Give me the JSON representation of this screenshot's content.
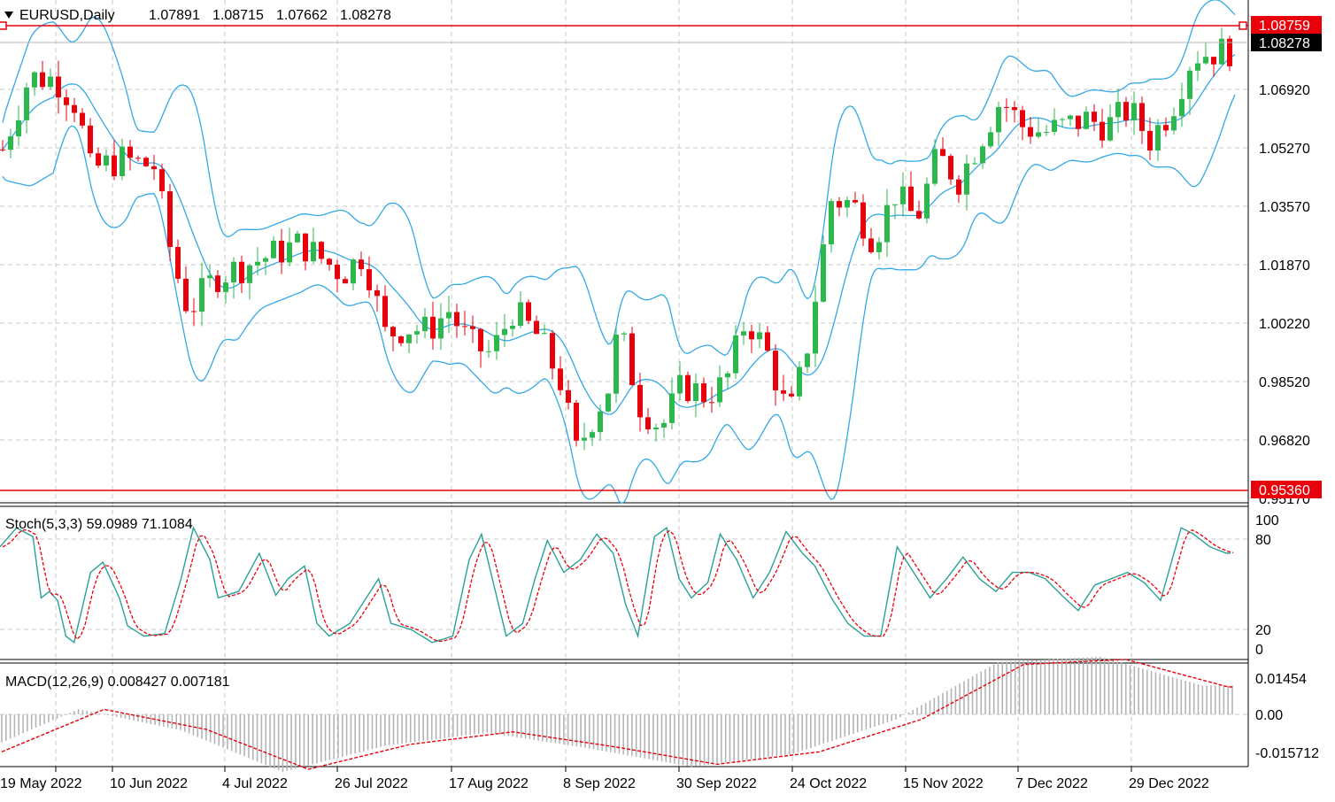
{
  "header": {
    "symbol_label": "EURUSD,Daily",
    "ohlc": [
      "1.07891",
      "1.08715",
      "1.07662",
      "1.08278"
    ]
  },
  "price_axis": {
    "ticks": [
      "1.06920",
      "1.05270",
      "1.03570",
      "1.01870",
      "1.00220",
      "0.98520",
      "0.96820"
    ],
    "partial_tick": "0.95170",
    "ylim": [
      0.9478,
      1.0975
    ]
  },
  "markers": {
    "high_line": "1.08759",
    "current_price": "1.08278",
    "low_line": "0.95360",
    "colors": {
      "high": "#e8000b",
      "current": "#000000",
      "low": "#e8000b"
    }
  },
  "date_axis": {
    "labels": [
      "19 May 2022",
      "10 Jun 2022",
      "4 Jul 2022",
      "26 Jul 2022",
      "17 Aug 2022",
      "8 Sep 2022",
      "30 Sep 2022",
      "24 Oct 2022",
      "15 Nov 2022",
      "7 Dec 2022",
      "29 Dec 2022"
    ]
  },
  "stoch": {
    "label": "Stoch(5,3,3) 59.0989 71.1084",
    "ticks": [
      "100",
      "80",
      "20",
      "0"
    ]
  },
  "macd": {
    "label": "MACD(12,26,9) 0.008427 0.007181",
    "ticks": [
      "0.01454",
      "0.00",
      "-0.015712"
    ]
  },
  "chart_data": {
    "type": "candlestick",
    "symbol": "EURUSD",
    "timeframe": "Daily",
    "colors": {
      "bull": "#2db84d",
      "bear": "#e8000b",
      "bands": "#33a9e6",
      "stoch_main": "#2aa198",
      "stoch_signal": "#e8000b",
      "macd_hist": "#b4b4b4",
      "macd_signal": "#e8000b"
    },
    "series": [
      {
        "name": "price",
        "anchors": [
          [
            0,
            1.053
          ],
          [
            10,
            1.0745
          ],
          [
            20,
            1.074
          ],
          [
            28,
            1.066
          ],
          [
            33,
            1.047
          ],
          [
            45,
            1.05
          ],
          [
            57,
            1.048
          ],
          [
            64,
            1.02
          ],
          [
            70,
            1.005
          ],
          [
            80,
            1.015
          ],
          [
            96,
            1.02
          ],
          [
            112,
            1.025
          ],
          [
            128,
            1.016
          ],
          [
            136,
            1.022
          ],
          [
            144,
            0.998
          ],
          [
            152,
            1.0
          ],
          [
            160,
            0.999
          ],
          [
            168,
            1.005
          ],
          [
            176,
            0.995
          ],
          [
            184,
            0.992
          ],
          [
            192,
            1.005
          ],
          [
            202,
            0.997
          ],
          [
            210,
            0.984
          ],
          [
            216,
            0.963
          ],
          [
            222,
            0.973
          ],
          [
            228,
            0.982
          ],
          [
            232,
            1.0
          ],
          [
            240,
            0.977
          ],
          [
            248,
            0.97
          ],
          [
            256,
            0.983
          ],
          [
            264,
            0.98
          ],
          [
            272,
            0.983
          ],
          [
            280,
            1.003
          ],
          [
            288,
            0.992
          ],
          [
            296,
            0.973
          ],
          [
            302,
            0.99
          ],
          [
            312,
            1.038
          ],
          [
            320,
            1.037
          ],
          [
            328,
            1.026
          ],
          [
            336,
            1.04
          ],
          [
            344,
            1.032
          ],
          [
            352,
            1.051
          ],
          [
            360,
            1.044
          ],
          [
            368,
            1.056
          ],
          [
            376,
            1.068
          ],
          [
            384,
            1.06
          ],
          [
            392,
            1.058
          ],
          [
            400,
            1.06
          ],
          [
            408,
            1.062
          ],
          [
            416,
            1.06
          ],
          [
            424,
            1.065
          ],
          [
            432,
            1.056
          ],
          [
            440,
            1.065
          ],
          [
            448,
            1.081
          ],
          [
            456,
            1.082
          ],
          [
            464,
            1.0828
          ]
        ]
      },
      {
        "name": "stoch_main",
        "anchors": [
          [
            0,
            80
          ],
          [
            4,
            95
          ],
          [
            8,
            88
          ],
          [
            10,
            40
          ],
          [
            12,
            45
          ],
          [
            14,
            38
          ],
          [
            16,
            10
          ],
          [
            18,
            5
          ],
          [
            22,
            60
          ],
          [
            25,
            68
          ],
          [
            29,
            40
          ],
          [
            31,
            18
          ],
          [
            35,
            10
          ],
          [
            40,
            12
          ],
          [
            44,
            55
          ],
          [
            47,
            95
          ],
          [
            51,
            70
          ],
          [
            53,
            40
          ],
          [
            58,
            45
          ],
          [
            63,
            75
          ],
          [
            67,
            42
          ],
          [
            70,
            55
          ],
          [
            74,
            65
          ],
          [
            77,
            20
          ],
          [
            80,
            10
          ],
          [
            85,
            20
          ],
          [
            89,
            40
          ],
          [
            92,
            55
          ],
          [
            95,
            20
          ],
          [
            100,
            15
          ],
          [
            105,
            5
          ],
          [
            110,
            10
          ],
          [
            114,
            70
          ],
          [
            117,
            90
          ],
          [
            120,
            50
          ],
          [
            123,
            10
          ],
          [
            127,
            20
          ],
          [
            130,
            55
          ],
          [
            133,
            85
          ],
          [
            137,
            60
          ],
          [
            141,
            70
          ],
          [
            145,
            90
          ],
          [
            149,
            75
          ],
          [
            152,
            35
          ],
          [
            155,
            10
          ],
          [
            159,
            88
          ],
          [
            162,
            95
          ],
          [
            165,
            55
          ],
          [
            168,
            40
          ],
          [
            172,
            52
          ],
          [
            175,
            90
          ],
          [
            179,
            70
          ],
          [
            183,
            40
          ],
          [
            187,
            60
          ],
          [
            191,
            92
          ],
          [
            195,
            75
          ],
          [
            198,
            65
          ],
          [
            202,
            40
          ],
          [
            206,
            20
          ],
          [
            210,
            10
          ],
          [
            214,
            10
          ],
          [
            218,
            80
          ],
          [
            222,
            60
          ],
          [
            226,
            40
          ],
          [
            230,
            55
          ],
          [
            234,
            72
          ],
          [
            238,
            55
          ],
          [
            242,
            45
          ],
          [
            246,
            60
          ],
          [
            250,
            60
          ],
          [
            254,
            55
          ],
          [
            258,
            42
          ],
          [
            262,
            30
          ],
          [
            266,
            50
          ],
          [
            270,
            55
          ],
          [
            274,
            60
          ],
          [
            278,
            52
          ],
          [
            282,
            38
          ],
          [
            287,
            95
          ],
          [
            290,
            90
          ],
          [
            294,
            80
          ],
          [
            298,
            75
          ]
        ]
      },
      {
        "name": "macd_signal",
        "anchors": [
          [
            0,
            -0.015
          ],
          [
            24,
            0.002
          ],
          [
            48,
            -0.006
          ],
          [
            72,
            -0.022
          ],
          [
            96,
            -0.012
          ],
          [
            120,
            -0.007
          ],
          [
            144,
            -0.013
          ],
          [
            168,
            -0.02
          ],
          [
            192,
            -0.015
          ],
          [
            216,
            -0.002
          ],
          [
            240,
            0.02
          ],
          [
            264,
            0.022
          ],
          [
            288,
            0.011
          ]
        ]
      }
    ]
  }
}
